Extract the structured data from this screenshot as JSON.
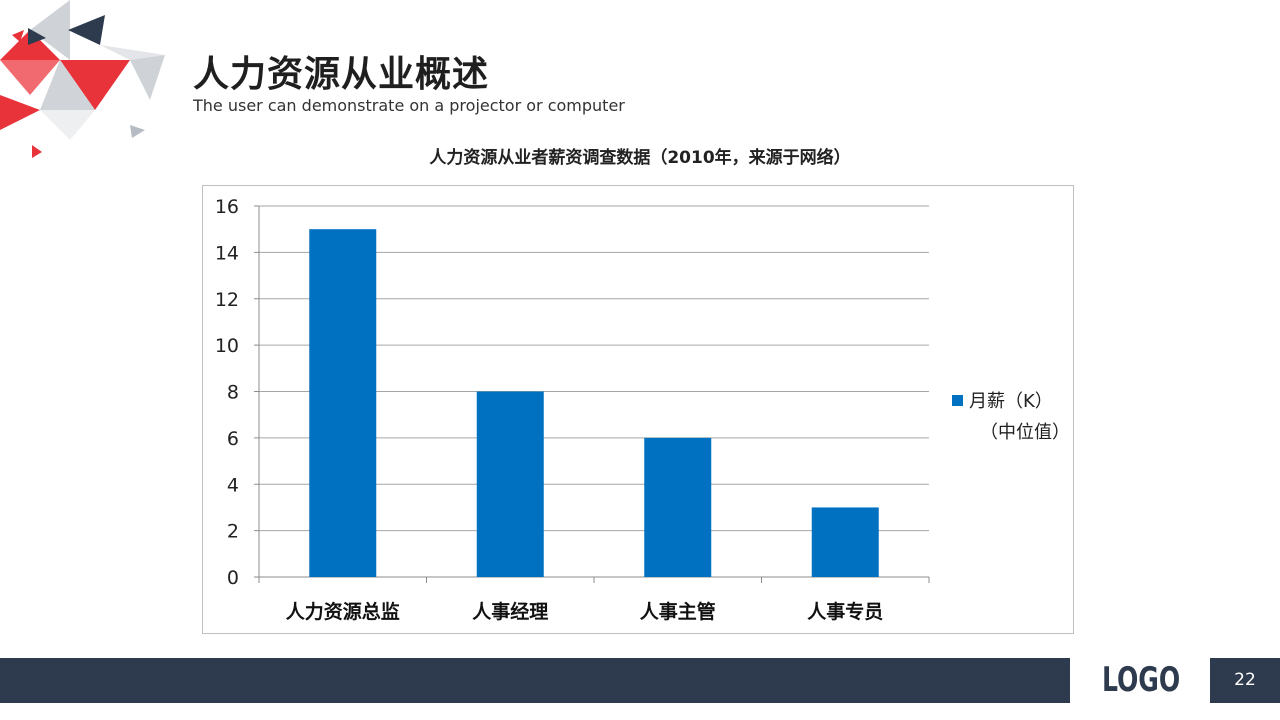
{
  "slide": {
    "title": "人力资源从业概述",
    "subtitle": "The user can demonstrate on a projector or computer",
    "logo": "LOGO",
    "page_number": "22"
  },
  "colors": {
    "bar": "#0070c0",
    "footer": "#2e3b4e",
    "accent_red": "#e8333b",
    "accent_navy": "#2e3b4e"
  },
  "chart_data": {
    "type": "bar",
    "title": "人力资源从业者薪资调查数据（2010年，来源于网络）",
    "categories": [
      "人力资源总监",
      "人事经理",
      "人事主管",
      "人事专员"
    ],
    "series": [
      {
        "name": "月薪（K）（中位值）",
        "values": [
          15,
          8,
          6,
          3
        ]
      }
    ],
    "ylim": [
      0,
      16
    ],
    "yticks": [
      0,
      2,
      4,
      6,
      8,
      10,
      12,
      14,
      16
    ],
    "legend": {
      "position": "right",
      "line1": "月薪（K）",
      "line2": "（中位值）"
    },
    "grid": true
  }
}
